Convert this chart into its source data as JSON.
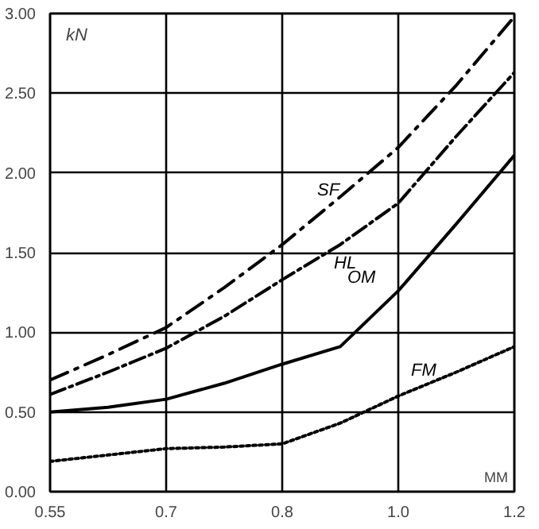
{
  "chart_data": {
    "type": "line",
    "xlabel": "MM",
    "ylabel": "kN",
    "categories": [
      "0.55",
      null,
      "0.7",
      null,
      "0.8",
      null,
      "1.0",
      null,
      "1.2"
    ],
    "series": [
      {
        "name": "SF",
        "color": "#000000",
        "line_style": "dashdot",
        "values": [
          0.7,
          0.86,
          1.03,
          1.28,
          1.55,
          1.85,
          2.16,
          2.55,
          2.98
        ]
      },
      {
        "name": "HL",
        "color": "#000000",
        "line_style": "dashed",
        "values": [
          0.61,
          0.75,
          0.9,
          1.1,
          1.33,
          1.55,
          1.81,
          2.23,
          2.63
        ]
      },
      {
        "name": "OM",
        "color": "#000000",
        "line_style": "solid",
        "values": [
          0.5,
          0.53,
          0.58,
          0.68,
          0.8,
          0.91,
          1.26,
          1.68,
          2.11
        ]
      },
      {
        "name": "FM",
        "color": "#000000",
        "line_style": "dotted",
        "values": [
          0.19,
          0.23,
          0.27,
          0.28,
          0.3,
          0.43,
          0.6,
          0.75,
          0.91
        ]
      }
    ],
    "ylim": [
      0,
      3
    ],
    "yticks": [
      {
        "value": 0,
        "label": "0.00"
      },
      {
        "value": 0.5,
        "label": "0.50"
      },
      {
        "value": 1,
        "label": "1.00"
      },
      {
        "value": 1.5,
        "label": "1.50"
      },
      {
        "value": 2,
        "label": "2.00"
      },
      {
        "value": 2.5,
        "label": "2.50"
      },
      {
        "value": 3,
        "label": "3.00"
      }
    ],
    "grid": true,
    "marker": "none"
  }
}
